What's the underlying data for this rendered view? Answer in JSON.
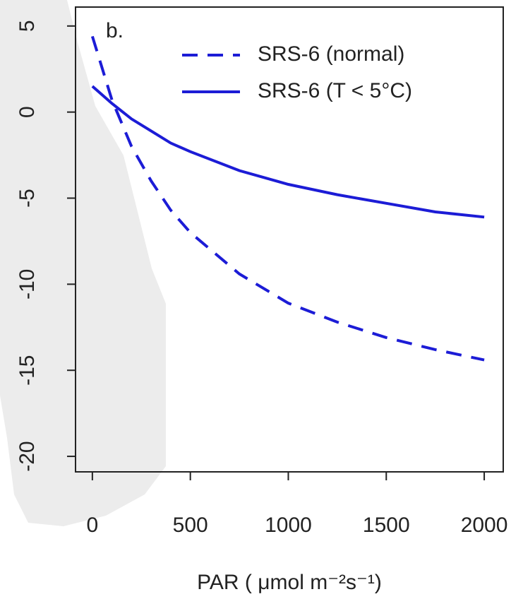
{
  "chart_data": {
    "type": "line",
    "panel_label": "b.",
    "x_label": "PAR ( μmol m⁻²s⁻¹)",
    "x": [
      0,
      100,
      200,
      300,
      400,
      500,
      750,
      1000,
      1250,
      1500,
      1750,
      2000
    ],
    "series": [
      {
        "name": "SRS-6 (normal)",
        "color": "#1c1cd6",
        "dashed": true,
        "values": [
          4.4,
          0.7,
          -2.0,
          -4.0,
          -5.7,
          -7.0,
          -9.4,
          -11.1,
          -12.2,
          -13.1,
          -13.8,
          -14.4
        ]
      },
      {
        "name": "SRS-6 (T < 5°C)",
        "color": "#1c1cd6",
        "dashed": false,
        "values": [
          1.5,
          0.5,
          -0.4,
          -1.1,
          -1.8,
          -2.3,
          -3.4,
          -4.2,
          -4.8,
          -5.3,
          -5.8,
          -6.1
        ]
      }
    ],
    "xlim": [
      -86,
      2097
    ],
    "ylim": [
      -20.9,
      6.1
    ],
    "xticks": [
      0,
      500,
      1000,
      1500,
      2000
    ],
    "yticks": [
      -20,
      -15,
      -10,
      -5,
      0,
      5
    ],
    "legend": "top-right"
  }
}
